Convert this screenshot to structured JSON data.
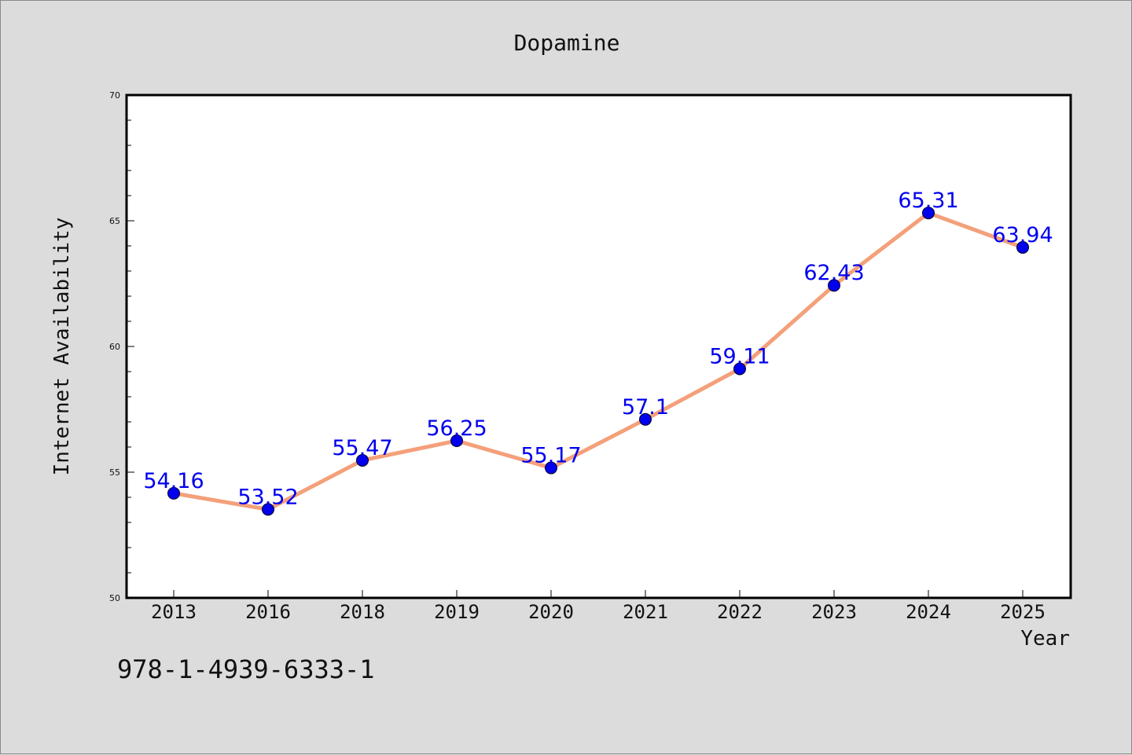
{
  "chart_data": {
    "type": "line",
    "title": "Dopamine",
    "xlabel": "Year",
    "ylabel": "Internet Availability",
    "categories": [
      "2013",
      "2016",
      "2018",
      "2019",
      "2020",
      "2021",
      "2022",
      "2023",
      "2024",
      "2025"
    ],
    "series": [
      {
        "values": [
          54.16,
          53.52,
          55.47,
          56.25,
          55.17,
          57.1,
          59.11,
          62.43,
          65.31,
          63.94
        ],
        "labels": [
          "54.16",
          "53.52",
          "55.47",
          "56.25",
          "55.17",
          "57.1",
          "59.11",
          "62.43",
          "65.31",
          "63.94"
        ],
        "line_color": "#f4a07a",
        "marker_color": "#0000ee"
      }
    ],
    "ylim": [
      50,
      70
    ],
    "yticks": [
      "50",
      "55",
      "60",
      "65",
      "70"
    ],
    "grid": false,
    "label_color": "#0000ee"
  },
  "footer": {
    "isbn": "978-1-4939-6333-1"
  }
}
